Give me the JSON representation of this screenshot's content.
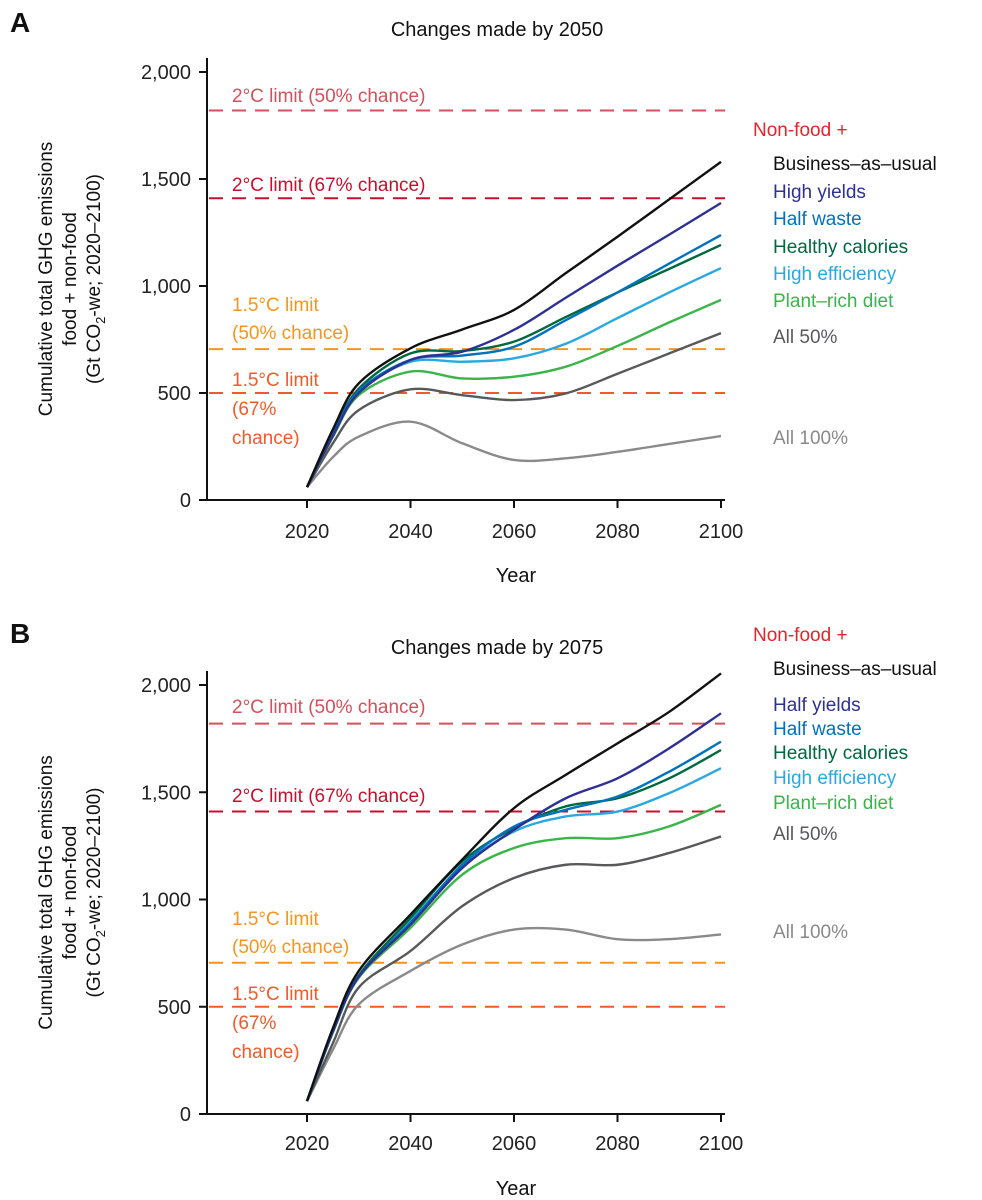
{
  "chart_data": [
    {
      "type": "line",
      "panel_label": "A",
      "title": "Changes made by 2050",
      "xlabel": "Year",
      "ylabel_lines": [
        "Cumulative total GHG emissions",
        "food + non-food",
        "(Gt CO",
        "2",
        "-we; 2020–2100)"
      ],
      "xlim": [
        2000,
        2100
      ],
      "ylim": [
        0,
        2000
      ],
      "xticks": [
        2020,
        2040,
        2060,
        2080,
        2100
      ],
      "xtick_labels": [
        "2020",
        "2040",
        "2060",
        "2080",
        "2100"
      ],
      "yticks": [
        0,
        500,
        1000,
        1500,
        2000
      ],
      "ytick_labels": [
        "0",
        "500",
        "1,000",
        "1,500",
        "2,000"
      ],
      "grid": false,
      "legend_header": "Non-food +",
      "legend_header_color": "#e3242b",
      "legend_placement": "right",
      "x": [
        2020,
        2025,
        2030,
        2040,
        2050,
        2060,
        2070,
        2080,
        2090,
        2100
      ],
      "series": [
        {
          "name": "Business–as–usual",
          "color": "#111111",
          "values": [
            60,
            330,
            545,
            709,
            797,
            888,
            1060,
            1230,
            1405,
            1580
          ]
        },
        {
          "name": "High yields",
          "color": "#2e3192",
          "values": [
            60,
            300,
            500,
            654,
            693,
            795,
            945,
            1095,
            1240,
            1388
          ]
        },
        {
          "name": "Half waste",
          "color": "#0072bc",
          "values": [
            60,
            305,
            510,
            655,
            675,
            716,
            840,
            970,
            1105,
            1238
          ]
        },
        {
          "name": "Healthy calories",
          "color": "#00693e",
          "values": [
            60,
            310,
            520,
            685,
            696,
            740,
            855,
            970,
            1080,
            1192
          ]
        },
        {
          "name": "High efficiency",
          "color": "#29a9e0",
          "values": [
            60,
            305,
            505,
            646,
            646,
            662,
            730,
            850,
            970,
            1084
          ]
        },
        {
          "name": "Plant–rich diet",
          "color": "#39b54a",
          "values": [
            60,
            295,
            490,
            600,
            568,
            576,
            623,
            720,
            830,
            935
          ]
        },
        {
          "name": "All 50%",
          "color": "#58595b",
          "values": [
            60,
            265,
            420,
            517,
            490,
            467,
            498,
            590,
            685,
            780
          ]
        },
        {
          "name": "All 100%",
          "color": "#8a8a8a",
          "values": [
            60,
            200,
            296,
            366,
            265,
            187,
            195,
            225,
            262,
            299
          ]
        }
      ],
      "limits": [
        {
          "label_lines": [
            "2°C limit (50% chance)"
          ],
          "value": 1820,
          "color": "#d4505c"
        },
        {
          "label_lines": [
            "2°C limit (67% chance)"
          ],
          "value": 1410,
          "color": "#c8102e"
        },
        {
          "label_lines": [
            "1.5°C limit",
            "(50% chance)"
          ],
          "value": 705,
          "color": "#f7941d"
        },
        {
          "label_lines": [
            "1.5°C limit",
            "(67%",
            "chance)"
          ],
          "value": 500,
          "color": "#f15a29"
        }
      ]
    },
    {
      "type": "line",
      "panel_label": "B",
      "title": "Changes made by 2075",
      "xlabel": "Year",
      "ylabel_lines": [
        "Cumulative total GHG emissions",
        "food + non-food",
        "(Gt CO",
        "2",
        "-we; 2020–2100)"
      ],
      "xlim": [
        2000,
        2100
      ],
      "ylim": [
        0,
        2000
      ],
      "xticks": [
        2020,
        2040,
        2060,
        2080,
        2100
      ],
      "xtick_labels": [
        "2020",
        "2040",
        "2060",
        "2080",
        "2100"
      ],
      "yticks": [
        0,
        500,
        1000,
        1500,
        2000
      ],
      "ytick_labels": [
        "0",
        "500",
        "1,000",
        "1,500",
        "2,000"
      ],
      "grid": false,
      "legend_header": "Non-food +",
      "legend_header_color": "#e3242b",
      "legend_placement": "right",
      "x": [
        2020,
        2025,
        2030,
        2040,
        2050,
        2060,
        2070,
        2080,
        2090,
        2100
      ],
      "series": [
        {
          "name": "Business–as–usual",
          "color": "#111111",
          "values": [
            60,
            400,
            667,
            930,
            1186,
            1426,
            1581,
            1728,
            1875,
            2054
          ]
        },
        {
          "name": "Half yields",
          "color": "#2e3192",
          "values": [
            60,
            385,
            640,
            883,
            1147,
            1325,
            1472,
            1565,
            1705,
            1868
          ]
        },
        {
          "name": "Half waste",
          "color": "#0072bc",
          "values": [
            60,
            385,
            640,
            891,
            1162,
            1340,
            1418,
            1480,
            1596,
            1736
          ]
        },
        {
          "name": "Healthy calories",
          "color": "#00693e",
          "values": [
            60,
            385,
            645,
            914,
            1178,
            1333,
            1434,
            1472,
            1565,
            1697
          ]
        },
        {
          "name": "High efficiency",
          "color": "#29a9e0",
          "values": [
            60,
            385,
            645,
            899,
            1155,
            1317,
            1387,
            1410,
            1496,
            1612
          ]
        },
        {
          "name": "Plant–rich diet",
          "color": "#39b54a",
          "values": [
            60,
            380,
            635,
            868,
            1116,
            1240,
            1286,
            1286,
            1341,
            1441
          ]
        },
        {
          "name": "All 50%",
          "color": "#58595b",
          "values": [
            60,
            330,
            590,
            760,
            969,
            1100,
            1162,
            1162,
            1217,
            1294
          ]
        },
        {
          "name": "All 100%",
          "color": "#8a8a8a",
          "values": [
            60,
            300,
            511,
            667,
            790,
            860,
            860,
            815,
            815,
            837
          ]
        }
      ],
      "limits": [
        {
          "label_lines": [
            "2°C limit (50% chance)"
          ],
          "value": 1820,
          "color": "#d4505c"
        },
        {
          "label_lines": [
            "2°C limit (67% chance)"
          ],
          "value": 1410,
          "color": "#c8102e"
        },
        {
          "label_lines": [
            "1.5°C limit",
            "(50% chance)"
          ],
          "value": 705,
          "color": "#f7941d"
        },
        {
          "label_lines": [
            "1.5°C limit",
            "(67%",
            "chance)"
          ],
          "value": 500,
          "color": "#f15a29"
        }
      ]
    }
  ]
}
